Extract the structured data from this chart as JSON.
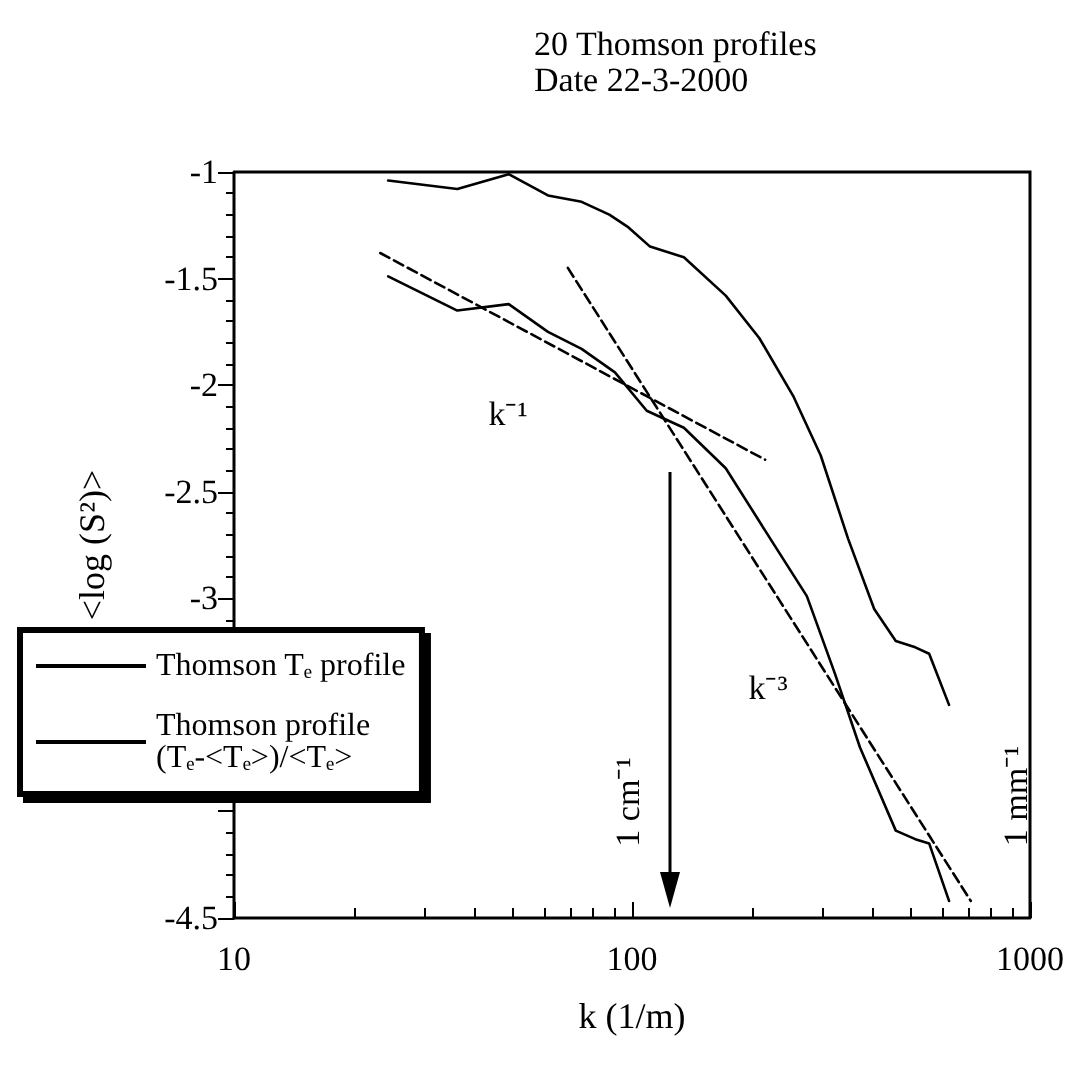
{
  "chart_data": {
    "type": "line",
    "title": "20 Thomson profiles",
    "subtitle": "Date 22-3-2000",
    "xlabel": "k (1/m)",
    "ylabel": "<log (S²)>",
    "log": "x",
    "xlim": [
      10,
      1000
    ],
    "xticks": [
      10,
      100,
      1000
    ],
    "ylim": [
      -4.5,
      -1
    ],
    "yticks": [
      -4.5,
      {
        "value": -4,
        "label": null
      },
      {
        "value": -3.5,
        "label": null
      },
      -3,
      -2.5,
      -2,
      -1.5,
      -1
    ],
    "grid": false,
    "legend": "bottom left",
    "marker": "none",
    "line_style": "solid",
    "series": [
      {
        "name": "Thomson Tₑ profile",
        "color": "#000000",
        "x": [
          24.4,
          36.4,
          49,
          61.5,
          74.7,
          87.7,
          98,
          111,
          135,
          172,
          209,
          254,
          298,
          349,
          406,
          460,
          515,
          558,
          626
        ],
        "values": [
          -1.04,
          -1.08,
          -1.01,
          -1.11,
          -1.14,
          -1.2,
          -1.26,
          -1.35,
          -1.4,
          -1.58,
          -1.78,
          -2.05,
          -2.33,
          -2.72,
          -3.05,
          -3.2,
          -3.23,
          -3.26,
          -3.5
        ]
      },
      {
        "name": "Thomson profile\n(Tₑ-<Tₑ>)/<Tₑ>",
        "color": "#000000",
        "x": [
          24.4,
          36.4,
          49,
          61.5,
          74.7,
          90.6,
          108.9,
          135,
          172,
          226,
          275,
          323,
          374,
          460,
          515,
          558,
          626
        ],
        "values": [
          -1.49,
          -1.65,
          -1.62,
          -1.75,
          -1.83,
          -1.94,
          -2.12,
          -2.2,
          -2.39,
          -2.74,
          -2.99,
          -3.35,
          -3.7,
          -4.09,
          -4.13,
          -4.15,
          -4.42
        ]
      },
      {
        "color": "#000000",
        "line_style": "dashed",
        "x": [
          23.3,
          216
        ],
        "values": [
          -1.38,
          -2.35
        ]
      },
      {
        "color": "#000000",
        "line_style": "dashed",
        "x": [
          69,
          710
        ],
        "values": [
          -1.45,
          -4.42
        ]
      }
    ],
    "annotations": [
      "k⁻¹",
      "k⁻³",
      "1 cm⁻¹",
      "1 mm⁻¹"
    ]
  }
}
